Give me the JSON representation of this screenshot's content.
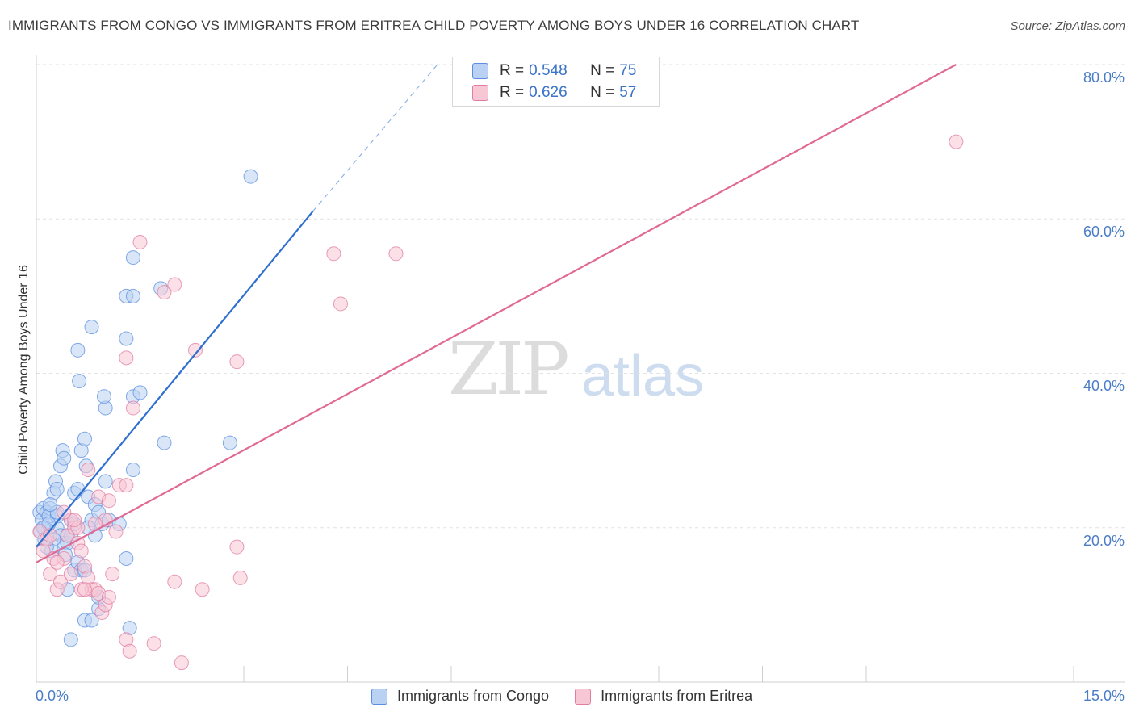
{
  "title": "IMMIGRANTS FROM CONGO VS IMMIGRANTS FROM ERITREA CHILD POVERTY AMONG BOYS UNDER 16 CORRELATION CHART",
  "source": "Source: ZipAtlas.com",
  "watermark": {
    "part1": "ZIP",
    "part2": "atlas"
  },
  "colors": {
    "congo": "#5b8ee0",
    "congo_fill": "#b9d1f3",
    "congo_line": "#2f6fcf",
    "eritrea": "#e07da0",
    "eritrea_fill": "#f7c7d6",
    "eritrea_line": "#e06a94"
  },
  "stats": {
    "congo": {
      "r_label": "R = ",
      "r_value": "0.548",
      "n_label": "N = ",
      "n_value": "75"
    },
    "eritrea": {
      "r_label": "R = ",
      "r_value": "0.626",
      "n_label": "N = ",
      "n_value": "57"
    }
  },
  "chart_data": {
    "type": "scatter",
    "ylabel": "Child Poverty Among Boys Under 16",
    "xlim": [
      0,
      15
    ],
    "ylim": [
      0,
      80
    ],
    "x_tick_labels": [
      "0.0%",
      "15.0%"
    ],
    "y_ticks": [
      20,
      40,
      60,
      80
    ],
    "y_tick_labels": [
      "20.0%",
      "40.0%",
      "60.0%",
      "80.0%"
    ],
    "legend_position": "bottom",
    "series": [
      {
        "name": "Immigrants from Congo",
        "trend": {
          "x": [
            0.0,
            4.0
          ],
          "y": [
            17.5,
            61.0
          ],
          "dash_to": {
            "x": 5.8,
            "y": 80.0
          }
        },
        "points": [
          [
            0.05,
            22
          ],
          [
            0.08,
            21
          ],
          [
            0.1,
            22.5
          ],
          [
            0.12,
            20
          ],
          [
            0.15,
            22
          ],
          [
            0.06,
            19.5
          ],
          [
            0.2,
            22.5
          ],
          [
            0.18,
            21.5
          ],
          [
            0.25,
            24.5
          ],
          [
            0.28,
            26
          ],
          [
            0.3,
            25
          ],
          [
            0.35,
            28
          ],
          [
            0.38,
            30
          ],
          [
            0.4,
            29
          ],
          [
            0.22,
            17
          ],
          [
            0.3,
            20
          ],
          [
            0.35,
            19
          ],
          [
            0.4,
            18
          ],
          [
            0.45,
            18
          ],
          [
            0.5,
            19
          ],
          [
            0.55,
            24.5
          ],
          [
            0.6,
            25
          ],
          [
            0.65,
            30
          ],
          [
            0.7,
            31.5
          ],
          [
            0.72,
            28
          ],
          [
            0.75,
            24
          ],
          [
            0.8,
            21
          ],
          [
            0.85,
            23
          ],
          [
            0.9,
            22
          ],
          [
            0.95,
            20.5
          ],
          [
            0.5,
            21
          ],
          [
            0.45,
            12
          ],
          [
            0.55,
            14.5
          ],
          [
            0.6,
            15.5
          ],
          [
            0.65,
            14.5
          ],
          [
            0.7,
            8
          ],
          [
            0.8,
            8
          ],
          [
            0.9,
            9.5
          ],
          [
            0.5,
            5.5
          ],
          [
            0.85,
            19
          ],
          [
            1.0,
            26
          ],
          [
            1.05,
            21
          ],
          [
            1.2,
            20.5
          ],
          [
            1.3,
            16
          ],
          [
            1.4,
            27.5
          ],
          [
            1.0,
            35.5
          ],
          [
            0.98,
            37
          ],
          [
            1.4,
            37
          ],
          [
            1.5,
            37.5
          ],
          [
            1.3,
            44.5
          ],
          [
            1.3,
            50
          ],
          [
            1.4,
            55
          ],
          [
            1.4,
            50
          ],
          [
            0.6,
            43
          ],
          [
            0.8,
            46
          ],
          [
            0.62,
            39
          ],
          [
            1.8,
            51
          ],
          [
            1.85,
            31
          ],
          [
            2.8,
            31
          ],
          [
            3.1,
            65.5
          ],
          [
            0.3,
            21.5
          ],
          [
            0.25,
            18.5
          ],
          [
            0.45,
            19
          ],
          [
            0.15,
            17.5
          ],
          [
            0.3,
            22
          ],
          [
            0.1,
            20
          ],
          [
            0.7,
            14.5
          ],
          [
            1.35,
            7
          ],
          [
            0.9,
            11
          ],
          [
            0.2,
            23
          ],
          [
            0.18,
            20.5
          ],
          [
            0.12,
            18.5
          ],
          [
            0.55,
            20.5
          ],
          [
            0.42,
            16.5
          ],
          [
            0.75,
            20
          ]
        ]
      },
      {
        "name": "Immigrants from Eritrea",
        "trend": {
          "x": [
            0.0,
            13.3
          ],
          "y": [
            15.5,
            80.0
          ]
        },
        "points": [
          [
            0.05,
            19.5
          ],
          [
            0.1,
            17
          ],
          [
            0.15,
            18.5
          ],
          [
            0.2,
            14
          ],
          [
            0.25,
            16
          ],
          [
            0.3,
            12
          ],
          [
            0.35,
            13
          ],
          [
            0.4,
            16
          ],
          [
            0.45,
            19
          ],
          [
            0.5,
            21
          ],
          [
            0.55,
            20
          ],
          [
            0.6,
            18
          ],
          [
            0.65,
            17
          ],
          [
            0.7,
            15
          ],
          [
            0.75,
            13.5
          ],
          [
            0.8,
            12
          ],
          [
            0.85,
            12
          ],
          [
            0.9,
            11.5
          ],
          [
            0.95,
            9
          ],
          [
            1.0,
            10
          ],
          [
            1.05,
            11
          ],
          [
            1.1,
            14
          ],
          [
            1.15,
            19.5
          ],
          [
            1.2,
            25.5
          ],
          [
            1.3,
            25.5
          ],
          [
            1.0,
            21
          ],
          [
            0.9,
            24
          ],
          [
            1.05,
            23.5
          ],
          [
            0.75,
            27.5
          ],
          [
            0.6,
            20
          ],
          [
            0.55,
            21
          ],
          [
            0.65,
            12
          ],
          [
            0.7,
            12
          ],
          [
            1.3,
            5.5
          ],
          [
            1.35,
            4
          ],
          [
            1.7,
            5
          ],
          [
            2.1,
            2.5
          ],
          [
            2.0,
            13
          ],
          [
            2.4,
            12
          ],
          [
            2.9,
            17.5
          ],
          [
            2.95,
            13.5
          ],
          [
            2.3,
            43
          ],
          [
            2.9,
            41.5
          ],
          [
            1.3,
            42
          ],
          [
            1.4,
            35.5
          ],
          [
            1.5,
            57
          ],
          [
            1.85,
            50.5
          ],
          [
            2.0,
            51.5
          ],
          [
            4.3,
            55.5
          ],
          [
            5.2,
            55.5
          ],
          [
            4.4,
            49
          ],
          [
            13.3,
            70
          ],
          [
            0.3,
            15.5
          ],
          [
            0.5,
            14
          ],
          [
            0.2,
            19
          ],
          [
            0.85,
            20.5
          ],
          [
            0.4,
            22
          ]
        ]
      }
    ]
  }
}
